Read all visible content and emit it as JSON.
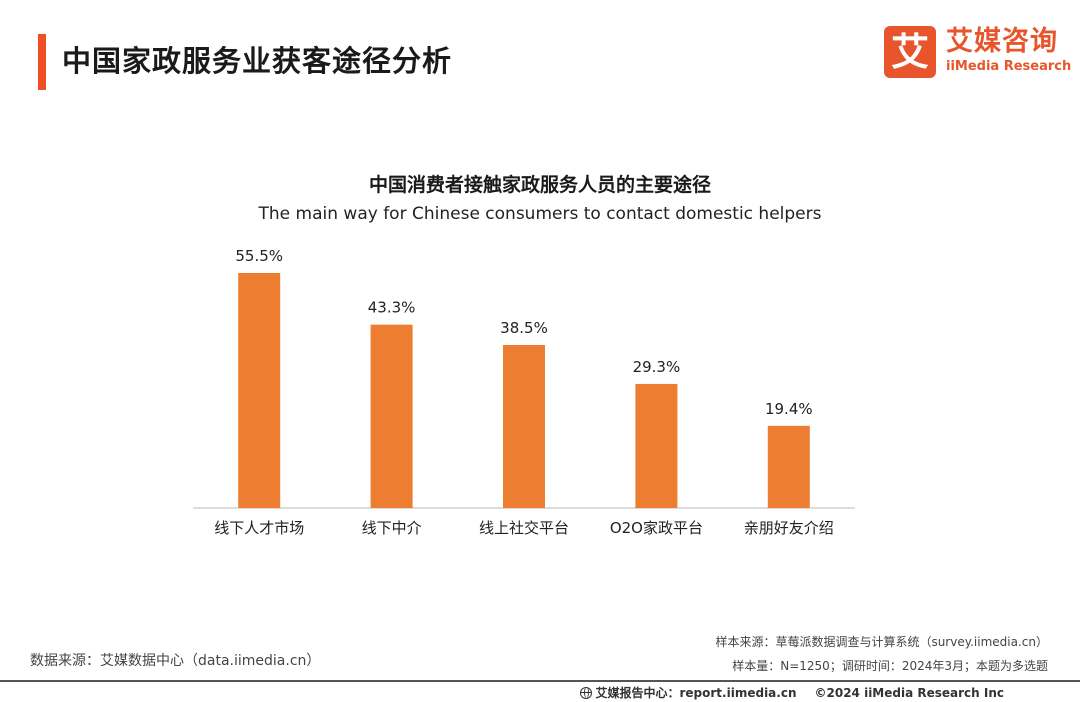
{
  "header": {
    "title": "中国家政服务业获客途径分析",
    "accent_color": "#f04e23"
  },
  "logo": {
    "mark": "艾",
    "name_cn": "艾媒咨询",
    "name_en": "iiMedia Research",
    "color": "#e8552c"
  },
  "chart_data": {
    "type": "bar",
    "title": "中国消费者接触家政服务人员的主要途径",
    "subtitle": "The main way for Chinese consumers to contact domestic helpers",
    "categories": [
      "线下人才市场",
      "线下中介",
      "线上社交平台",
      "O2O家政平台",
      "亲朋好友介绍"
    ],
    "values": [
      55.5,
      43.3,
      38.5,
      29.3,
      19.4
    ],
    "value_labels": [
      "55.5%",
      "43.3%",
      "38.5%",
      "29.3%",
      "19.4%"
    ],
    "unit": "%",
    "ylim": [
      0,
      55.5
    ],
    "bar_color": "#ed7d31",
    "grid": false,
    "legend": "none"
  },
  "footer": {
    "data_source": "数据来源：艾媒数据中心（data.iimedia.cn）",
    "sample_source": "样本来源：草莓派数据调查与计算系统（survey.iimedia.cn）",
    "sample_info": "样本量：N=1250；调研时间：2024年3月；本题为多选题",
    "report_center": "艾媒报告中心：report.iimedia.cn",
    "copyright": "©2024  iiMedia Research  Inc"
  }
}
